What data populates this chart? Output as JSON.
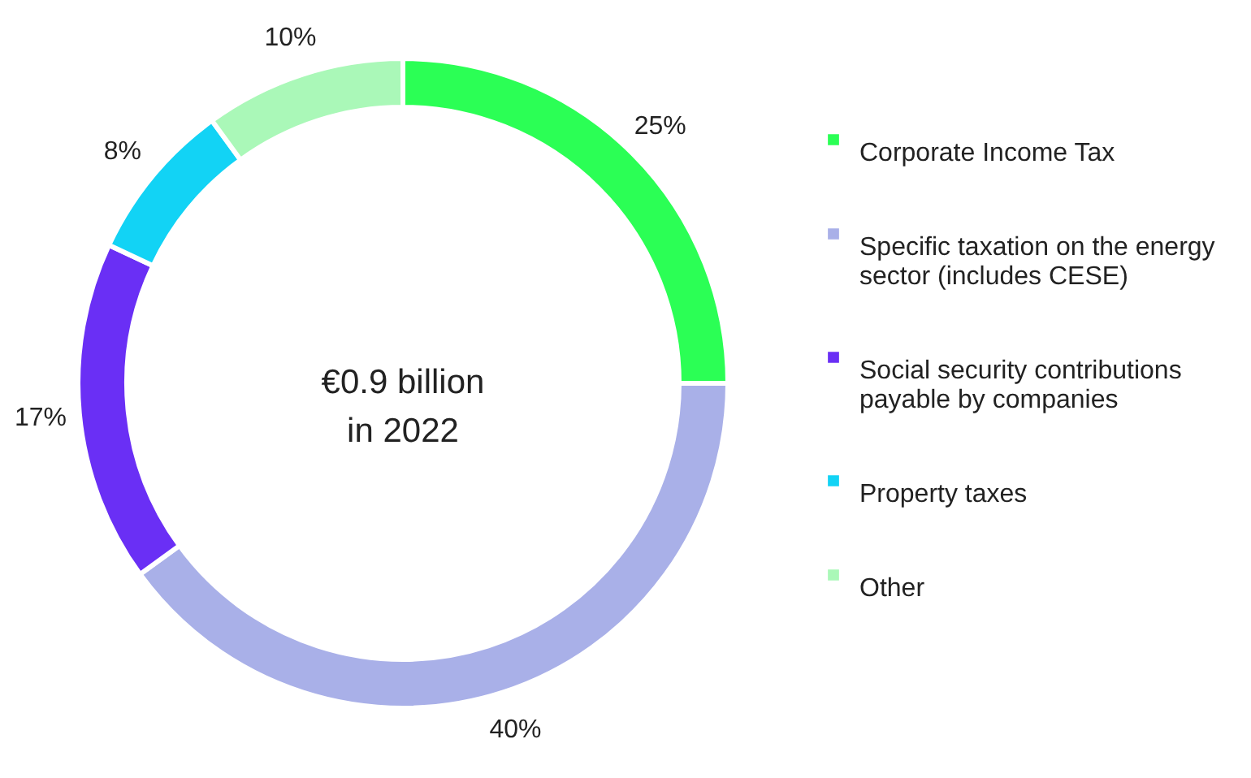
{
  "chart_data": {
    "type": "donut",
    "categories": [
      "Corporate Income Tax",
      "Specific taxation on the energy sector (includes CESE)",
      "Social security contributions payable by companies",
      "Property taxes",
      "Other"
    ],
    "values": [
      25,
      40,
      17,
      8,
      10
    ],
    "colors": [
      "#2bff55",
      "#a9b0e8",
      "#6a2ff5",
      "#12d3f5",
      "#aaf8b8"
    ],
    "value_labels": [
      "25%",
      "40%",
      "17%",
      "8%",
      "10%"
    ],
    "legend": "right",
    "annotations": [
      "€0.9 billion\nin 2022"
    ]
  }
}
